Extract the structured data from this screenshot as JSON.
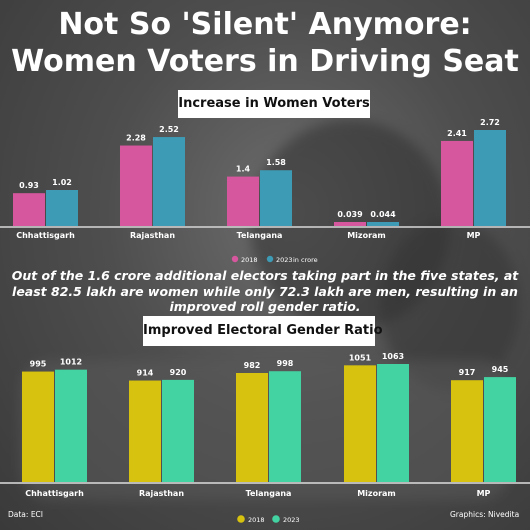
{
  "title_line1": "Not So 'Silent' Anymore:",
  "title_line2": "Women Voters in Driving Seat",
  "note": "Out of the 1.6 crore additional electors taking part in the five states, at least 82.5 lakh are women while only 72.3 lakh are men, resulting in an improved roll gender ratio.",
  "source": "Data: ECI",
  "credit": "Graphics: Nivedita",
  "colors": {
    "women_2018": "#d6579e",
    "women_2023": "#3e9bb5",
    "ratio_2018": "#d6c20f",
    "ratio_2023": "#43d3a2"
  },
  "chart_data": [
    {
      "type": "bar",
      "title": "Increase in Women Voters",
      "categories": [
        "Chhattisgarh",
        "Rajasthan",
        "Telangana",
        "Mizoram",
        "MP"
      ],
      "series": [
        {
          "name": "2018",
          "values": [
            0.93,
            2.28,
            1.4,
            0.039,
            2.41
          ]
        },
        {
          "name": "2023",
          "values": [
            1.02,
            2.52,
            1.58,
            0.044,
            2.72
          ]
        }
      ],
      "value_labels": {
        "2018": [
          "0.93",
          "2.28",
          "1.4",
          "0.039",
          "2.41"
        ],
        "2023": [
          "1.02",
          "2.52",
          "1.58",
          "0.044",
          "2.72"
        ]
      },
      "unit_note": "in crore",
      "legend_position": "bottom-center",
      "grid": false
    },
    {
      "type": "bar",
      "title": "Improved Electoral Gender Ratio",
      "categories": [
        "Chhattisgarh",
        "Rajasthan",
        "Telangana",
        "Mizoram",
        "MP"
      ],
      "series": [
        {
          "name": "2018",
          "values": [
            995,
            914,
            982,
            1051,
            917
          ]
        },
        {
          "name": "2023",
          "values": [
            1012,
            920,
            998,
            1063,
            945
          ]
        }
      ],
      "legend_position": "bottom-center",
      "grid": false
    }
  ]
}
